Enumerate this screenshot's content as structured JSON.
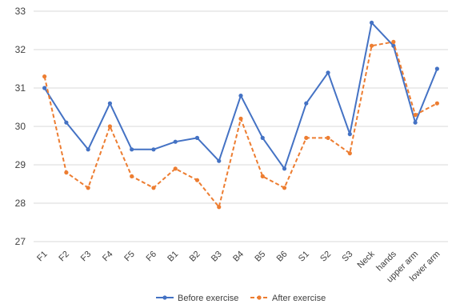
{
  "chart_data": {
    "type": "line",
    "title": "",
    "xlabel": "",
    "ylabel": "",
    "categories": [
      "F1",
      "F2",
      "F3",
      "F4",
      "F5",
      "F6",
      "B1",
      "B2",
      "B3",
      "B4",
      "B5",
      "B6",
      "S1",
      "S2",
      "S3",
      "Neck",
      "hands",
      "upper arm",
      "lower arm"
    ],
    "ylim": [
      27,
      33
    ],
    "yticks": [
      27,
      28,
      29,
      30,
      31,
      32,
      33
    ],
    "grid": true,
    "legend": "bottom",
    "series": [
      {
        "name": "Before exercise",
        "color": "#4472C4",
        "style": "solid",
        "values": [
          31.0,
          30.1,
          29.4,
          30.6,
          29.4,
          29.4,
          29.6,
          29.7,
          29.1,
          30.8,
          29.7,
          28.9,
          30.6,
          31.4,
          29.8,
          32.7,
          32.1,
          30.1,
          31.5
        ]
      },
      {
        "name": "After exercise",
        "color": "#ED7D31",
        "style": "dashed",
        "values": [
          31.3,
          28.8,
          28.4,
          30.0,
          28.7,
          28.4,
          28.9,
          28.6,
          27.9,
          30.2,
          28.7,
          28.4,
          29.7,
          29.7,
          29.3,
          32.1,
          32.2,
          30.3,
          30.6
        ]
      }
    ]
  }
}
